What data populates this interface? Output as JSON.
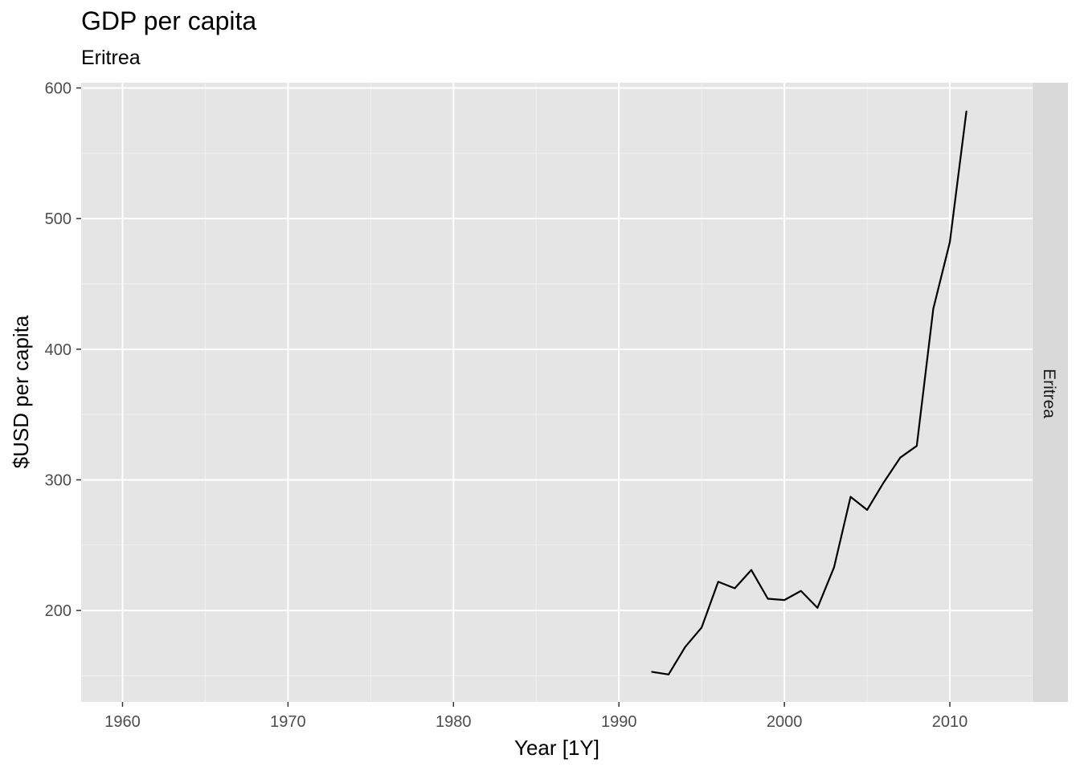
{
  "chart_data": {
    "type": "line",
    "title": "GDP per capita",
    "subtitle": "Eritrea",
    "xlabel": "Year [1Y]",
    "ylabel": "$USD per capita",
    "facet_label": "Eritrea",
    "xlim": [
      1957.5,
      2015
    ],
    "ylim": [
      130,
      604
    ],
    "x_ticks": [
      1960,
      1970,
      1980,
      1990,
      2000,
      2010
    ],
    "y_ticks": [
      200,
      300,
      400,
      500,
      600
    ],
    "grid": true,
    "series": [
      {
        "color": "#000000",
        "x": [
          1992,
          1993,
          1994,
          1995,
          1996,
          1997,
          1998,
          1999,
          2000,
          2001,
          2002,
          2003,
          2004,
          2005,
          2006,
          2007,
          2008,
          2009,
          2010,
          2011
        ],
        "values": [
          153,
          151,
          172,
          187,
          222,
          217,
          231,
          209,
          208,
          215,
          202,
          233,
          287,
          277,
          298,
          317,
          326,
          431,
          482,
          582
        ]
      }
    ]
  }
}
